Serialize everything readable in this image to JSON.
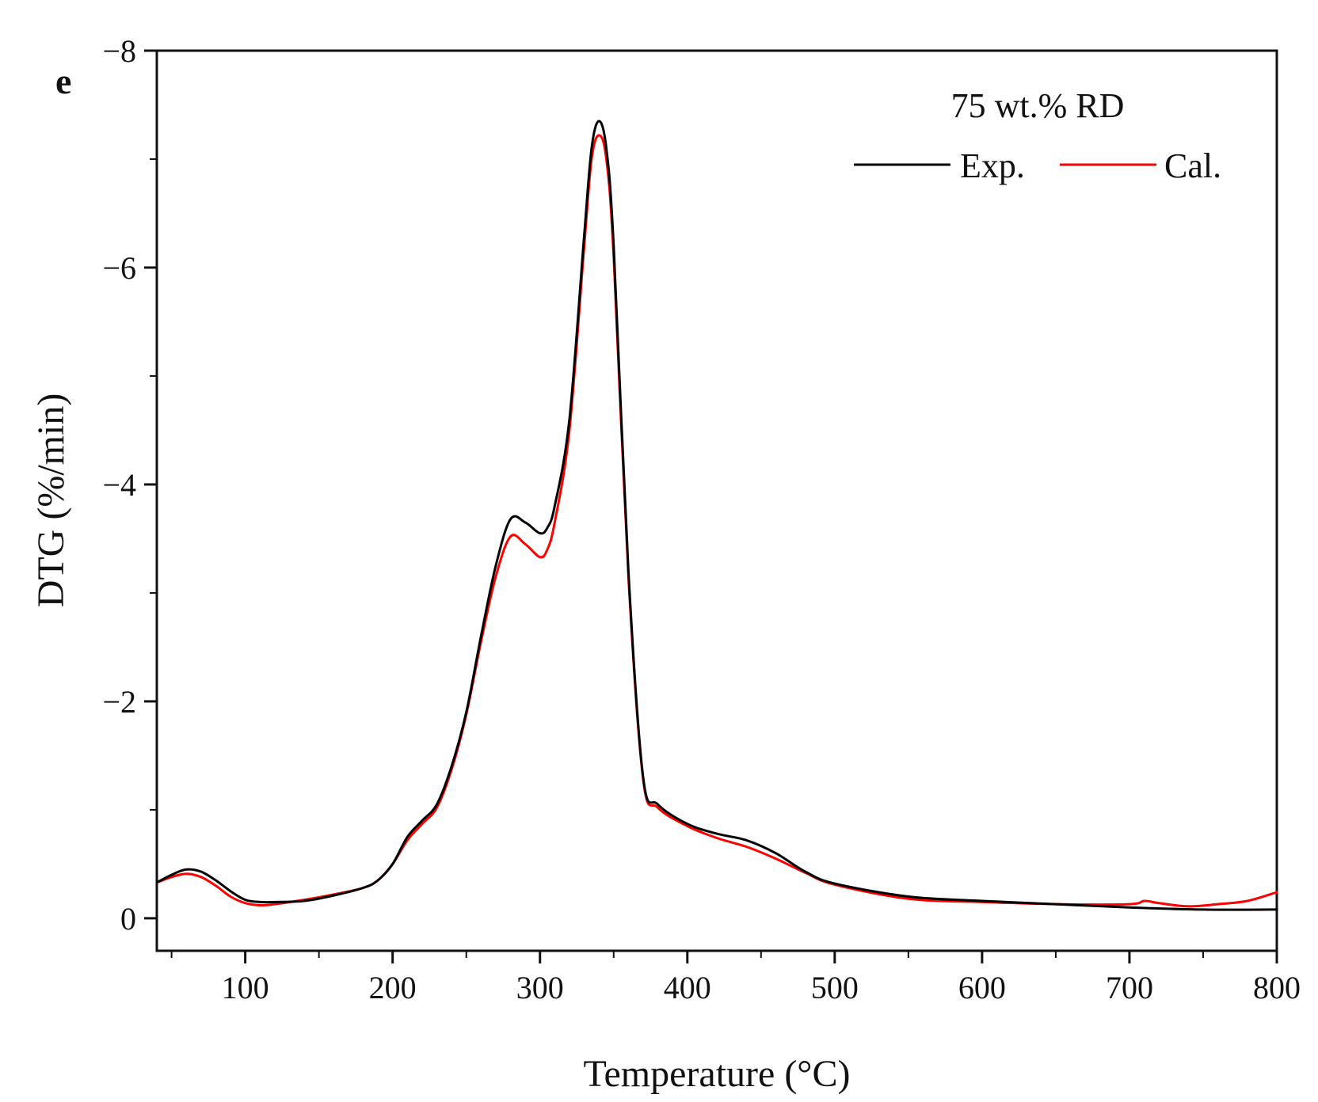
{
  "panel_label": "e",
  "chart_data": {
    "type": "line",
    "title": "",
    "annotation": "75 wt.% RD",
    "xlabel": "Temperature (°C)",
    "ylabel": "DTG (%/min)",
    "xlim": [
      40,
      800
    ],
    "ylim": [
      0.3,
      -8
    ],
    "y_inverted": true,
    "grid": false,
    "legend_position": "top-right",
    "x_ticks": [
      100,
      200,
      300,
      400,
      500,
      600,
      700,
      800
    ],
    "x_tick_labels": [
      "100",
      "200",
      "300",
      "400",
      "500",
      "600",
      "700",
      "800"
    ],
    "y_ticks": [
      0,
      -2,
      -4,
      -6,
      -8
    ],
    "y_tick_labels": [
      "0",
      "−2",
      "−4",
      "−6",
      "−8"
    ],
    "colors": {
      "Exp.": "#000000",
      "Cal.": "#ff0000"
    },
    "series": [
      {
        "name": "Exp.",
        "x": [
          40,
          50,
          60,
          70,
          80,
          90,
          100,
          110,
          120,
          140,
          160,
          180,
          190,
          200,
          210,
          220,
          230,
          240,
          250,
          260,
          270,
          280,
          290,
          300,
          305,
          310,
          320,
          330,
          335,
          340,
          345,
          350,
          360,
          370,
          380,
          400,
          420,
          440,
          460,
          480,
          500,
          550,
          600,
          650,
          700,
          750,
          800
        ],
        "y": [
          -0.33,
          -0.4,
          -0.45,
          -0.43,
          -0.35,
          -0.25,
          -0.17,
          -0.15,
          -0.15,
          -0.16,
          -0.21,
          -0.28,
          -0.35,
          -0.5,
          -0.75,
          -0.9,
          -1.05,
          -1.4,
          -1.9,
          -2.6,
          -3.25,
          -3.68,
          -3.65,
          -3.55,
          -3.6,
          -3.8,
          -4.6,
          -6.3,
          -7.1,
          -7.35,
          -7.1,
          -6.2,
          -3.2,
          -1.3,
          -1.05,
          -0.87,
          -0.78,
          -0.72,
          -0.6,
          -0.43,
          -0.32,
          -0.2,
          -0.16,
          -0.13,
          -0.1,
          -0.08,
          -0.08
        ]
      },
      {
        "name": "Cal.",
        "x": [
          40,
          50,
          60,
          70,
          80,
          90,
          100,
          110,
          120,
          140,
          160,
          180,
          190,
          200,
          210,
          220,
          230,
          240,
          250,
          260,
          270,
          280,
          290,
          300,
          305,
          310,
          320,
          330,
          335,
          340,
          345,
          350,
          360,
          370,
          380,
          400,
          420,
          440,
          460,
          480,
          500,
          550,
          600,
          650,
          700,
          710,
          720,
          740,
          760,
          780,
          800
        ],
        "y": [
          -0.33,
          -0.38,
          -0.41,
          -0.38,
          -0.3,
          -0.2,
          -0.14,
          -0.12,
          -0.13,
          -0.17,
          -0.22,
          -0.28,
          -0.35,
          -0.5,
          -0.72,
          -0.87,
          -1.02,
          -1.37,
          -1.88,
          -2.55,
          -3.15,
          -3.52,
          -3.45,
          -3.33,
          -3.4,
          -3.65,
          -4.5,
          -6.2,
          -7.0,
          -7.22,
          -7.0,
          -6.1,
          -3.15,
          -1.28,
          -1.02,
          -0.85,
          -0.74,
          -0.66,
          -0.55,
          -0.42,
          -0.31,
          -0.18,
          -0.15,
          -0.13,
          -0.13,
          -0.16,
          -0.14,
          -0.11,
          -0.13,
          -0.16,
          -0.24
        ]
      }
    ]
  }
}
